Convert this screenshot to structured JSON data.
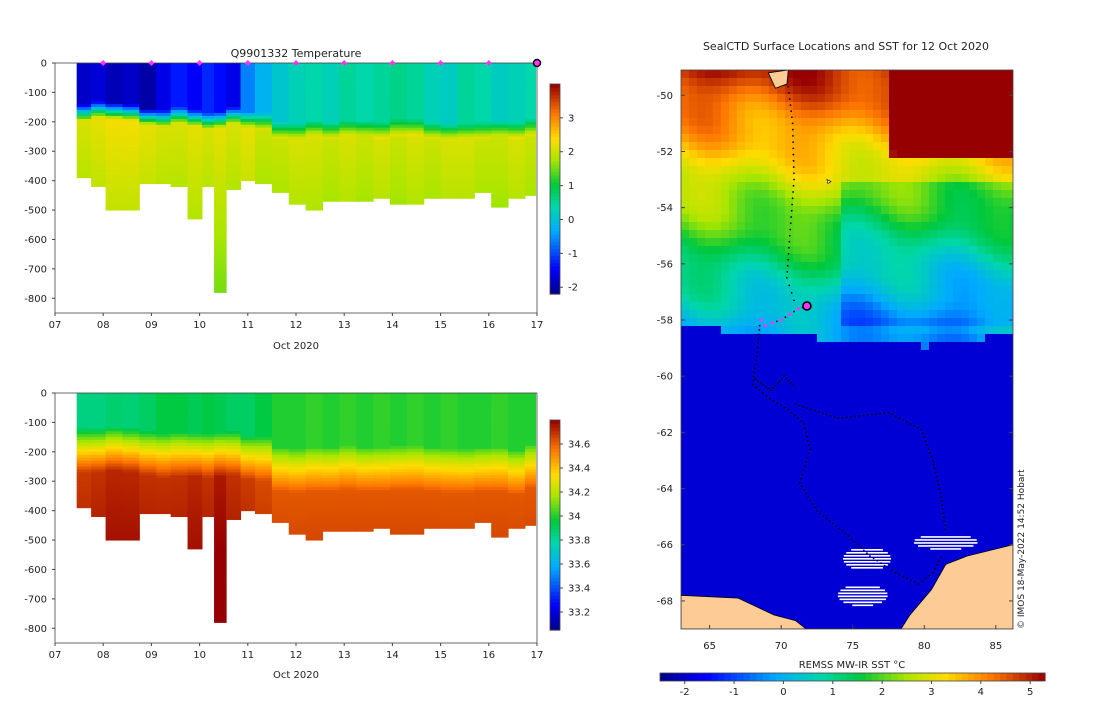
{
  "colors": {
    "land": "#fccb96",
    "track": "#000000",
    "marker": "#ff33ff",
    "ice": "#ffffff"
  },
  "chart_data": [
    {
      "type": "heatmap",
      "title": "Q9901332  Temperature",
      "xlabel": "Oct 2020",
      "x_ticks": [
        "07",
        "08",
        "09",
        "10",
        "11",
        "12",
        "13",
        "14",
        "15",
        "16",
        "17"
      ],
      "x_range": [
        7,
        17
      ],
      "y_ticks": [
        0,
        -100,
        -200,
        -300,
        -400,
        -500,
        -600,
        -700,
        -800
      ],
      "ylim": [
        -850,
        0
      ],
      "colorbar": {
        "ticks": [
          3,
          2,
          1,
          0,
          -1,
          -2
        ],
        "range": [
          -2.2,
          4.0
        ]
      },
      "profile_markers_day": [
        8,
        9,
        10,
        11,
        12,
        13,
        14,
        15,
        16
      ],
      "profiles": [
        {
          "day": 7.45,
          "depth": 390,
          "surface": -1.8,
          "thermocline": 180,
          "deep": 2.1
        },
        {
          "day": 7.75,
          "depth": 420,
          "surface": -1.7,
          "thermocline": 170,
          "deep": 2.2
        },
        {
          "day": 8.05,
          "depth": 500,
          "surface": -1.9,
          "thermocline": 175,
          "deep": 2.3
        },
        {
          "day": 8.4,
          "depth": 500,
          "surface": -1.8,
          "thermocline": 180,
          "deep": 2.3
        },
        {
          "day": 8.75,
          "depth": 410,
          "surface": -2.0,
          "thermocline": 195,
          "deep": 2.2
        },
        {
          "day": 9.1,
          "depth": 410,
          "surface": -1.6,
          "thermocline": 200,
          "deep": 2.1
        },
        {
          "day": 9.4,
          "depth": 420,
          "surface": -1.3,
          "thermocline": 190,
          "deep": 2.1
        },
        {
          "day": 9.75,
          "depth": 525,
          "surface": -1.5,
          "thermocline": 200,
          "deep": 2.2
        },
        {
          "day": 10.05,
          "depth": 420,
          "surface": -1.2,
          "thermocline": 210,
          "deep": 2.1
        },
        {
          "day": 10.3,
          "depth": 775,
          "surface": -1.4,
          "thermocline": 205,
          "deep": 2.2
        },
        {
          "day": 10.55,
          "depth": 430,
          "surface": -1.6,
          "thermocline": 190,
          "deep": 2.1
        },
        {
          "day": 10.85,
          "depth": 400,
          "surface": -0.6,
          "thermocline": 205,
          "deep": 2.2
        },
        {
          "day": 11.15,
          "depth": 410,
          "surface": -0.2,
          "thermocline": 210,
          "deep": 2.0
        },
        {
          "day": 11.5,
          "depth": 440,
          "surface": 0.1,
          "thermocline": 240,
          "deep": 2.0
        },
        {
          "day": 11.85,
          "depth": 480,
          "surface": 0.3,
          "thermocline": 245,
          "deep": 2.1
        },
        {
          "day": 12.2,
          "depth": 495,
          "surface": 0.4,
          "thermocline": 235,
          "deep": 2.1
        },
        {
          "day": 12.55,
          "depth": 465,
          "surface": 0.3,
          "thermocline": 240,
          "deep": 2.0
        },
        {
          "day": 12.9,
          "depth": 470,
          "surface": 0.5,
          "thermocline": 235,
          "deep": 2.1
        },
        {
          "day": 13.25,
          "depth": 470,
          "surface": 0.4,
          "thermocline": 235,
          "deep": 2.0
        },
        {
          "day": 13.6,
          "depth": 460,
          "surface": 0.5,
          "thermocline": 240,
          "deep": 2.1
        },
        {
          "day": 13.95,
          "depth": 475,
          "surface": 0.6,
          "thermocline": 230,
          "deep": 2.0
        },
        {
          "day": 14.3,
          "depth": 480,
          "surface": 0.5,
          "thermocline": 230,
          "deep": 2.1
        },
        {
          "day": 14.65,
          "depth": 455,
          "surface": 0.3,
          "thermocline": 240,
          "deep": 2.0
        },
        {
          "day": 15.0,
          "depth": 460,
          "surface": 0.2,
          "thermocline": 245,
          "deep": 2.1
        },
        {
          "day": 15.35,
          "depth": 455,
          "surface": 0.5,
          "thermocline": 245,
          "deep": 2.1
        },
        {
          "day": 15.7,
          "depth": 440,
          "surface": 0.4,
          "thermocline": 240,
          "deep": 2.0
        },
        {
          "day": 16.05,
          "depth": 485,
          "surface": 0.2,
          "thermocline": 235,
          "deep": 2.0
        },
        {
          "day": 16.4,
          "depth": 460,
          "surface": 0.3,
          "thermocline": 240,
          "deep": 2.1
        },
        {
          "day": 16.75,
          "depth": 445,
          "surface": 0.4,
          "thermocline": 230,
          "deep": 2.0
        }
      ]
    },
    {
      "type": "heatmap",
      "title": "",
      "xlabel": "Oct 2020",
      "x_ticks": [
        "07",
        "08",
        "09",
        "10",
        "11",
        "12",
        "13",
        "14",
        "15",
        "16",
        "17"
      ],
      "x_range": [
        7,
        17
      ],
      "y_ticks": [
        0,
        -100,
        -200,
        -300,
        -400,
        -500,
        -600,
        -700,
        -800
      ],
      "ylim": [
        -850,
        0
      ],
      "colorbar": {
        "ticks": [
          34.6,
          34.4,
          34.2,
          34,
          33.8,
          33.6,
          33.4,
          33.2
        ],
        "range": [
          33.05,
          34.8
        ]
      },
      "profiles": [
        {
          "day": 7.45,
          "depth": 390,
          "surface": 33.85,
          "halocline": 150,
          "deep": 34.68
        },
        {
          "day": 7.75,
          "depth": 420,
          "surface": 33.85,
          "halocline": 150,
          "deep": 34.7
        },
        {
          "day": 8.05,
          "depth": 500,
          "surface": 33.88,
          "halocline": 145,
          "deep": 34.72
        },
        {
          "day": 8.4,
          "depth": 500,
          "surface": 33.87,
          "halocline": 150,
          "deep": 34.72
        },
        {
          "day": 8.75,
          "depth": 410,
          "surface": 33.9,
          "halocline": 160,
          "deep": 34.7
        },
        {
          "day": 9.1,
          "depth": 410,
          "surface": 33.95,
          "halocline": 170,
          "deep": 34.7
        },
        {
          "day": 9.4,
          "depth": 420,
          "surface": 33.95,
          "halocline": 165,
          "deep": 34.7
        },
        {
          "day": 9.75,
          "depth": 525,
          "surface": 33.92,
          "halocline": 165,
          "deep": 34.72
        },
        {
          "day": 10.05,
          "depth": 420,
          "surface": 33.95,
          "halocline": 170,
          "deep": 34.7
        },
        {
          "day": 10.3,
          "depth": 775,
          "surface": 33.93,
          "halocline": 165,
          "deep": 34.75
        },
        {
          "day": 10.55,
          "depth": 430,
          "surface": 33.9,
          "halocline": 160,
          "deep": 34.7
        },
        {
          "day": 10.85,
          "depth": 400,
          "surface": 33.9,
          "halocline": 175,
          "deep": 34.68
        },
        {
          "day": 11.15,
          "depth": 410,
          "surface": 33.95,
          "halocline": 180,
          "deep": 34.65
        },
        {
          "day": 11.5,
          "depth": 440,
          "surface": 34.0,
          "halocline": 215,
          "deep": 34.62
        },
        {
          "day": 11.85,
          "depth": 480,
          "surface": 34.0,
          "halocline": 220,
          "deep": 34.62
        },
        {
          "day": 12.2,
          "depth": 495,
          "surface": 34.02,
          "halocline": 215,
          "deep": 34.62
        },
        {
          "day": 12.55,
          "depth": 465,
          "surface": 34.0,
          "halocline": 215,
          "deep": 34.62
        },
        {
          "day": 12.9,
          "depth": 470,
          "surface": 34.02,
          "halocline": 210,
          "deep": 34.62
        },
        {
          "day": 13.25,
          "depth": 470,
          "surface": 34.0,
          "halocline": 215,
          "deep": 34.62
        },
        {
          "day": 13.6,
          "depth": 460,
          "surface": 34.02,
          "halocline": 215,
          "deep": 34.62
        },
        {
          "day": 13.95,
          "depth": 475,
          "surface": 34.0,
          "halocline": 210,
          "deep": 34.62
        },
        {
          "day": 14.3,
          "depth": 480,
          "surface": 34.02,
          "halocline": 210,
          "deep": 34.62
        },
        {
          "day": 14.65,
          "depth": 455,
          "surface": 34.0,
          "halocline": 215,
          "deep": 34.62
        },
        {
          "day": 15.0,
          "depth": 460,
          "surface": 34.02,
          "halocline": 220,
          "deep": 34.62
        },
        {
          "day": 15.35,
          "depth": 455,
          "surface": 34.0,
          "halocline": 220,
          "deep": 34.62
        },
        {
          "day": 15.7,
          "depth": 440,
          "surface": 34.0,
          "halocline": 215,
          "deep": 34.62
        },
        {
          "day": 16.05,
          "depth": 485,
          "surface": 34.02,
          "halocline": 215,
          "deep": 34.62
        },
        {
          "day": 16.4,
          "depth": 460,
          "surface": 34.0,
          "halocline": 225,
          "deep": 34.62
        },
        {
          "day": 16.75,
          "depth": 445,
          "surface": 34.0,
          "halocline": 205,
          "deep": 34.62
        }
      ]
    },
    {
      "type": "heatmap",
      "title": "SealCTD Surface Locations and SST for 12 Oct 2020",
      "xlabel": "",
      "x_ticks": [
        "65",
        "70",
        "75",
        "80",
        "85"
      ],
      "xlim": [
        63,
        86.2
      ],
      "y_ticks": [
        "-50",
        "-52",
        "-54",
        "-56",
        "-58",
        "-60",
        "-62",
        "-64",
        "-66",
        "-68"
      ],
      "ylim": [
        -69,
        -49.1
      ],
      "colorbar": {
        "label": "REMSS MW-IR SST °C",
        "ticks": [
          -2,
          -1,
          0,
          1,
          2,
          3,
          4,
          5
        ],
        "range": [
          -2.5,
          5.3
        ]
      },
      "credit": "© IMOS 18-May-2022 14:52 Hobart",
      "current_position": [
        71.8,
        -57.5
      ],
      "recent_track": [
        [
          71.8,
          -57.5
        ],
        [
          71.2,
          -57.6
        ],
        [
          70.6,
          -57.8
        ],
        [
          70.0,
          -58.0
        ],
        [
          69.4,
          -58.1
        ],
        [
          68.9,
          -58.2
        ],
        [
          68.6,
          -58.0
        ]
      ]
    }
  ]
}
